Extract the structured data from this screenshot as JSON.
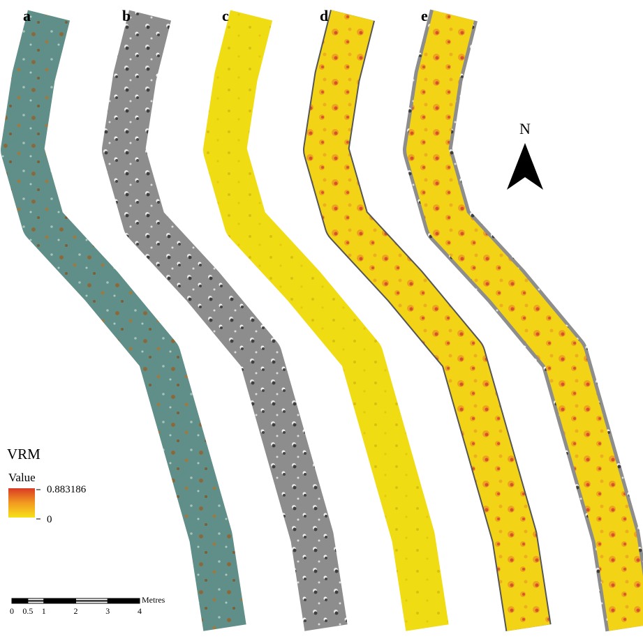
{
  "panels": [
    "a",
    "b",
    "c",
    "d",
    "e"
  ],
  "north_arrow": "N",
  "legend": {
    "title": "VRM",
    "subtitle": "Value",
    "max": 0.883186,
    "min": 0
  },
  "scale_bar": {
    "unit": "Metres",
    "ticks": [
      0,
      0.5,
      1,
      2,
      3,
      4
    ]
  }
}
